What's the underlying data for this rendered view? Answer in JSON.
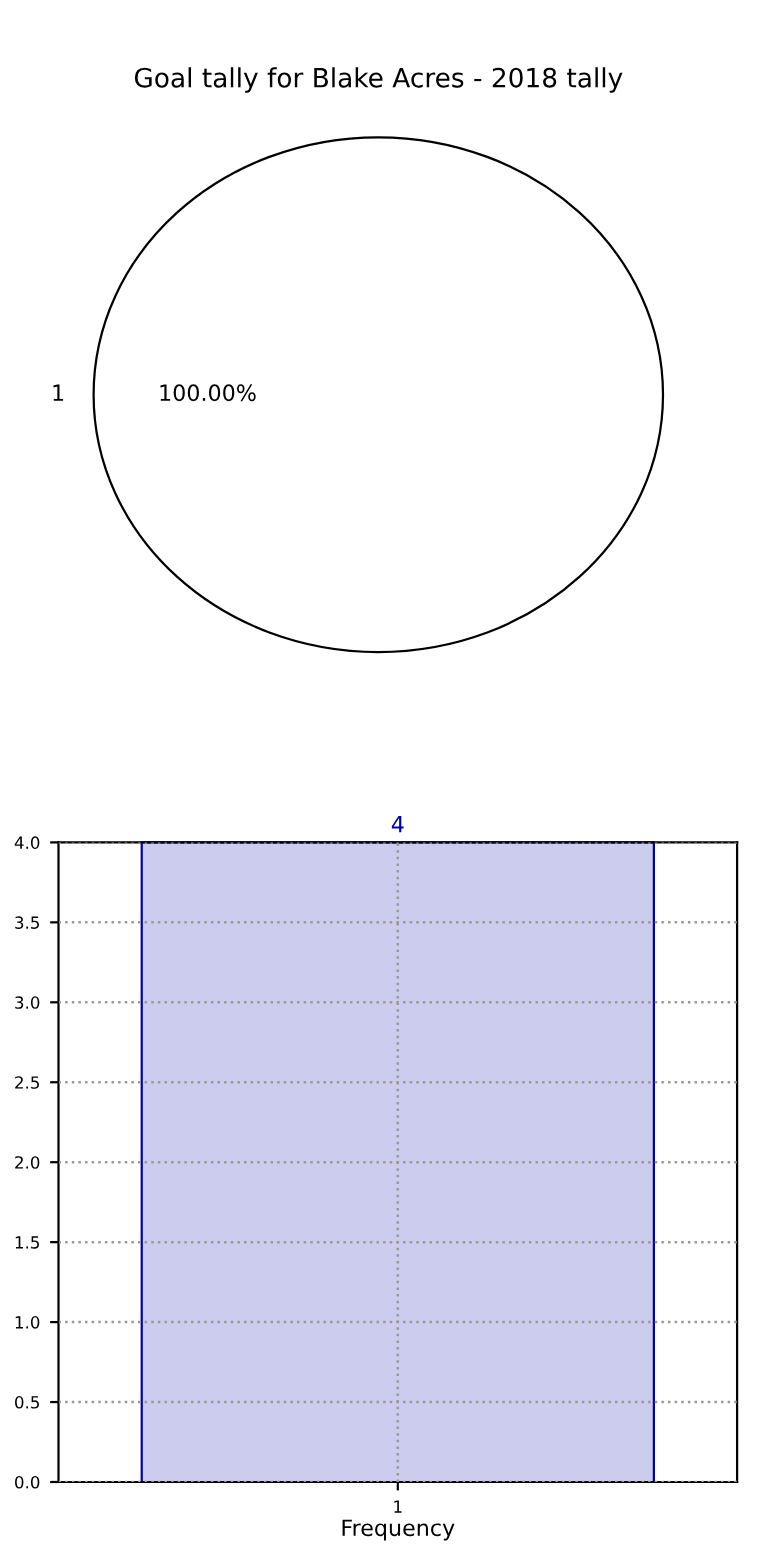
{
  "chart_data": [
    {
      "type": "pie",
      "title": "Goal tally for Blake Acres - 2018 tally",
      "categories": [
        "1"
      ],
      "values": [
        100
      ],
      "value_labels": [
        "100.00%"
      ],
      "colors": [
        "#ffffff"
      ]
    },
    {
      "type": "bar",
      "xlabel": "Frequency",
      "categories": [
        "1"
      ],
      "values": [
        4
      ],
      "color": "#ccccee",
      "data_labels": true,
      "grid": true,
      "ylim": [
        0,
        4
      ],
      "yticks": [
        {
          "value": 0,
          "label": "0.0"
        },
        {
          "value": 0.5,
          "label": "0.5"
        },
        {
          "value": 1,
          "label": "1.0"
        },
        {
          "value": 1.5,
          "label": "1.5"
        },
        {
          "value": 2,
          "label": "2.0"
        },
        {
          "value": 2.5,
          "label": "2.5"
        },
        {
          "value": 3,
          "label": "3.0"
        },
        {
          "value": 3.5,
          "label": "3.5"
        },
        {
          "value": 4,
          "label": "4.0"
        }
      ]
    }
  ]
}
